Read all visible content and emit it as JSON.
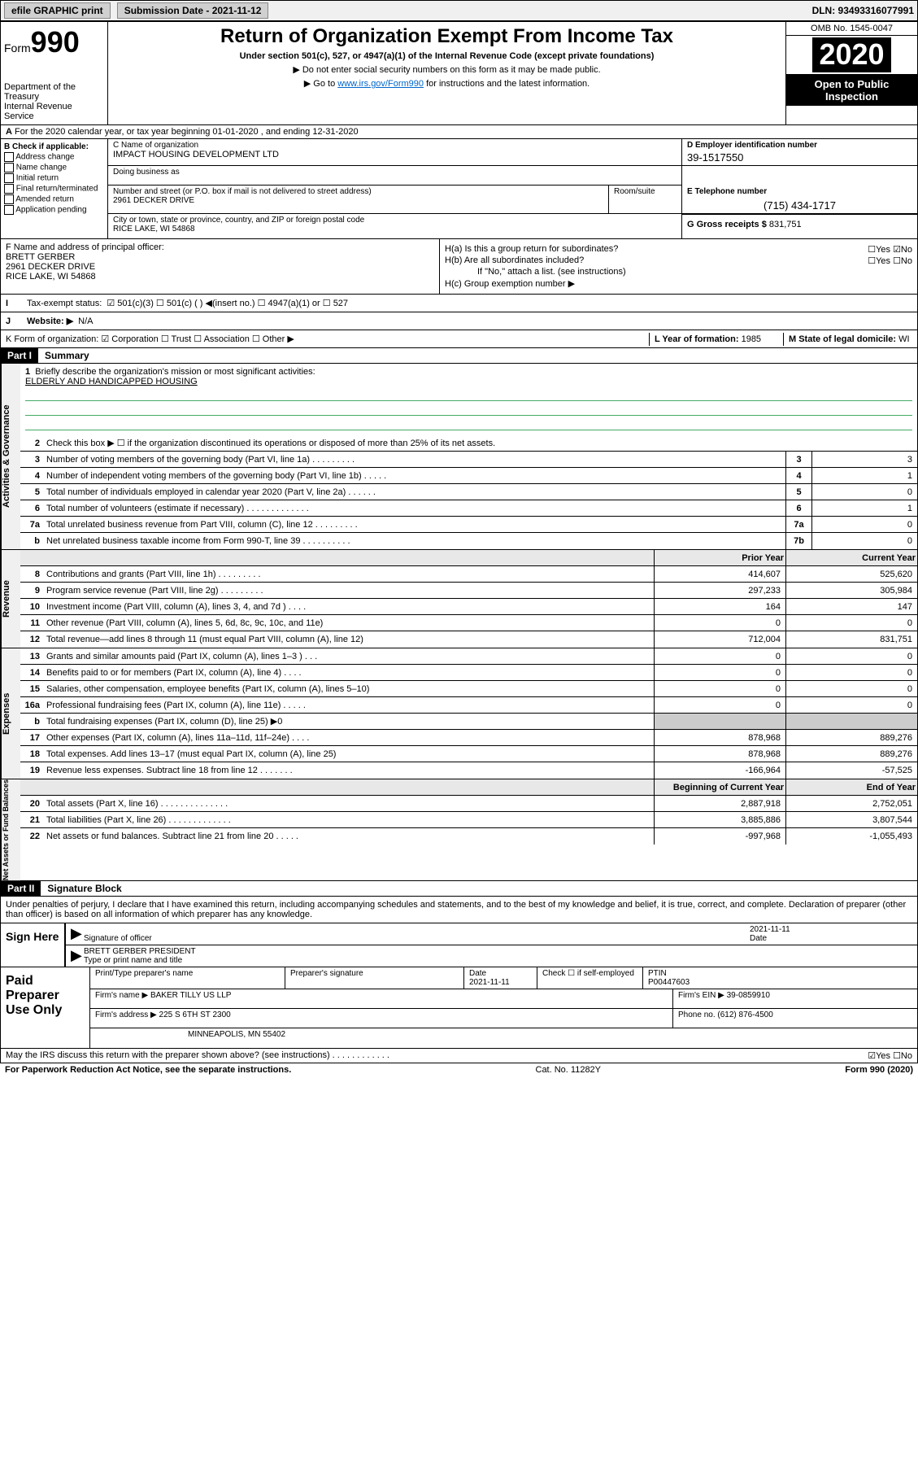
{
  "top": {
    "efile": "efile GRAPHIC print",
    "sub_label": "Submission Date - 2021-11-12",
    "dln": "DLN: 93493316077991"
  },
  "header": {
    "form_word": "Form",
    "form_num": "990",
    "dept": "Department of the Treasury\nInternal Revenue Service",
    "title": "Return of Organization Exempt From Income Tax",
    "subtitle": "Under section 501(c), 527, or 4947(a)(1) of the Internal Revenue Code (except private foundations)",
    "note1": "▶ Do not enter social security numbers on this form as it may be made public.",
    "note2_pre": "▶ Go to ",
    "note2_link": "www.irs.gov/Form990",
    "note2_post": " for instructions and the latest information.",
    "omb": "OMB No. 1545-0047",
    "year": "2020",
    "inspect": "Open to Public Inspection"
  },
  "rowA": "For the 2020 calendar year, or tax year beginning 01-01-2020   , and ending 12-31-2020",
  "boxB": {
    "label": "B Check if applicable:",
    "opts": [
      "Address change",
      "Name change",
      "Initial return",
      "Final return/terminated",
      "Amended return",
      "Application pending"
    ]
  },
  "boxC": {
    "name_label": "C Name of organization",
    "name": "IMPACT HOUSING DEVELOPMENT LTD",
    "dba_label": "Doing business as",
    "addr_label": "Number and street (or P.O. box if mail is not delivered to street address)",
    "addr": "2961 DECKER DRIVE",
    "room_label": "Room/suite",
    "city_label": "City or town, state or province, country, and ZIP or foreign postal code",
    "city": "RICE LAKE, WI  54868"
  },
  "boxD": {
    "label": "D Employer identification number",
    "val": "39-1517550"
  },
  "boxE": {
    "label": "E Telephone number",
    "val": "(715) 434-1717"
  },
  "boxG": {
    "label": "G Gross receipts $",
    "val": "831,751"
  },
  "boxF": {
    "label": "F  Name and address of principal officer:",
    "name": "BRETT GERBER",
    "addr1": "2961 DECKER DRIVE",
    "addr2": "RICE LAKE, WI  54868"
  },
  "boxH": {
    "ha": "H(a)  Is this a group return for subordinates?",
    "ha_yn": "☐Yes  ☑No",
    "hb": "H(b)  Are all subordinates included?",
    "hb_yn": "☐Yes  ☐No",
    "hb_note": "If \"No,\" attach a list. (see instructions)",
    "hc": "H(c)  Group exemption number ▶"
  },
  "taxrow": {
    "label": "Tax-exempt status:",
    "opts": "☑ 501(c)(3)    ☐ 501(c) (  ) ◀(insert no.)    ☐ 4947(a)(1) or   ☐ 527"
  },
  "webrow": {
    "label": "Website: ▶",
    "val": "N/A"
  },
  "krow": {
    "k": "K Form of organization:  ☑ Corporation  ☐ Trust  ☐ Association  ☐ Other ▶",
    "l_label": "L Year of formation:",
    "l_val": "1985",
    "m_label": "M State of legal domicile:",
    "m_val": "WI"
  },
  "part1": {
    "hdr": "Part I",
    "title": "Summary"
  },
  "summary": {
    "gov_label": "Activities & Governance",
    "rev_label": "Revenue",
    "exp_label": "Expenses",
    "net_label": "Net Assets or Fund Balances",
    "line1_label": "Briefly describe the organization's mission or most significant activities:",
    "line1_val": "ELDERLY AND HANDICAPPED HOUSING",
    "line2": "Check this box ▶ ☐  if the organization discontinued its operations or disposed of more than 25% of its net assets.",
    "prior_hdr": "Prior Year",
    "curr_hdr": "Current Year",
    "begin_hdr": "Beginning of Current Year",
    "end_hdr": "End of Year",
    "lines_gov": [
      {
        "n": "3",
        "d": "Number of voting members of the governing body (Part VI, line 1a)   .    .    .    .    .    .    .    .    .",
        "box": "3",
        "v": "3"
      },
      {
        "n": "4",
        "d": "Number of independent voting members of the governing body (Part VI, line 1b)   .    .    .    .    .",
        "box": "4",
        "v": "1"
      },
      {
        "n": "5",
        "d": "Total number of individuals employed in calendar year 2020 (Part V, line 2a)   .    .    .    .    .    .",
        "box": "5",
        "v": "0"
      },
      {
        "n": "6",
        "d": "Total number of volunteers (estimate if necessary)   .    .    .    .    .    .    .    .    .    .    .    .    .",
        "box": "6",
        "v": "1"
      },
      {
        "n": "7a",
        "d": "Total unrelated business revenue from Part VIII, column (C), line 12   .    .    .    .    .    .    .    .    .",
        "box": "7a",
        "v": "0"
      },
      {
        "n": "b",
        "d": "Net unrelated business taxable income from Form 990-T, line 39   .    .    .    .    .    .    .    .    .    .",
        "box": "7b",
        "v": "0"
      }
    ],
    "lines_rev": [
      {
        "n": "8",
        "d": "Contributions and grants (Part VIII, line 1h)   .    .    .    .    .    .    .    .    .",
        "p": "414,607",
        "c": "525,620"
      },
      {
        "n": "9",
        "d": "Program service revenue (Part VIII, line 2g)   .    .    .    .    .    .    .    .    .",
        "p": "297,233",
        "c": "305,984"
      },
      {
        "n": "10",
        "d": "Investment income (Part VIII, column (A), lines 3, 4, and 7d )   .    .    .    .",
        "p": "164",
        "c": "147"
      },
      {
        "n": "11",
        "d": "Other revenue (Part VIII, column (A), lines 5, 6d, 8c, 9c, 10c, and 11e)",
        "p": "0",
        "c": "0"
      },
      {
        "n": "12",
        "d": "Total revenue—add lines 8 through 11 (must equal Part VIII, column (A), line 12)",
        "p": "712,004",
        "c": "831,751"
      }
    ],
    "lines_exp": [
      {
        "n": "13",
        "d": "Grants and similar amounts paid (Part IX, column (A), lines 1–3 )   .    .    .",
        "p": "0",
        "c": "0"
      },
      {
        "n": "14",
        "d": "Benefits paid to or for members (Part IX, column (A), line 4)   .    .    .    .",
        "p": "0",
        "c": "0"
      },
      {
        "n": "15",
        "d": "Salaries, other compensation, employee benefits (Part IX, column (A), lines 5–10)",
        "p": "0",
        "c": "0"
      },
      {
        "n": "16a",
        "d": "Professional fundraising fees (Part IX, column (A), line 11e)   .    .    .    .    .",
        "p": "0",
        "c": "0"
      },
      {
        "n": "b",
        "d": "Total fundraising expenses (Part IX, column (D), line 25) ▶0",
        "p": "",
        "c": "",
        "shaded": true
      },
      {
        "n": "17",
        "d": "Other expenses (Part IX, column (A), lines 11a–11d, 11f–24e)   .    .    .    .",
        "p": "878,968",
        "c": "889,276"
      },
      {
        "n": "18",
        "d": "Total expenses. Add lines 13–17 (must equal Part IX, column (A), line 25)",
        "p": "878,968",
        "c": "889,276"
      },
      {
        "n": "19",
        "d": "Revenue less expenses. Subtract line 18 from line 12   .    .    .    .    .    .    .",
        "p": "-166,964",
        "c": "-57,525"
      }
    ],
    "lines_net": [
      {
        "n": "20",
        "d": "Total assets (Part X, line 16)   .    .    .    .    .    .    .    .    .    .    .    .    .    .",
        "p": "2,887,918",
        "c": "2,752,051"
      },
      {
        "n": "21",
        "d": "Total liabilities (Part X, line 26)   .    .    .    .    .    .    .    .    .    .    .    .    .",
        "p": "3,885,886",
        "c": "3,807,544"
      },
      {
        "n": "22",
        "d": "Net assets or fund balances. Subtract line 21 from line 20   .    .    .    .    .",
        "p": "-997,968",
        "c": "-1,055,493"
      }
    ]
  },
  "part2": {
    "hdr": "Part II",
    "title": "Signature Block"
  },
  "sig_text": "Under penalties of perjury, I declare that I have examined this return, including accompanying schedules and statements, and to the best of my knowledge and belief, it is true, correct, and complete. Declaration of preparer (other than officer) is based on all information of which preparer has any knowledge.",
  "sign": {
    "label": "Sign Here",
    "sig_of": "Signature of officer",
    "date_lbl": "Date",
    "date": "2021-11-11",
    "name": "BRETT GERBER  PRESIDENT",
    "name_lbl": "Type or print name and title"
  },
  "prep": {
    "label": "Paid Preparer Use Only",
    "c1": "Print/Type preparer's name",
    "c2": "Preparer's signature",
    "c3_lbl": "Date",
    "c3": "2021-11-11",
    "c4": "Check ☐  if self-employed",
    "c5_lbl": "PTIN",
    "c5": "P00447603",
    "firm_lbl": "Firm's name    ▶",
    "firm": "BAKER TILLY US LLP",
    "ein_lbl": "Firm's EIN ▶",
    "ein": "39-0859910",
    "addr_lbl": "Firm's address ▶",
    "addr": "225 S 6TH ST 2300",
    "addr2": "MINNEAPOLIS, MN  55402",
    "phone_lbl": "Phone no.",
    "phone": "(612) 876-4500"
  },
  "footer": {
    "discuss": "May the IRS discuss this return with the preparer shown above? (see instructions)   .    .    .    .    .    .    .    .    .    .    .    .",
    "yn": "☑Yes  ☐No",
    "pra": "For Paperwork Reduction Act Notice, see the separate instructions.",
    "cat": "Cat. No. 11282Y",
    "form": "Form 990 (2020)"
  }
}
